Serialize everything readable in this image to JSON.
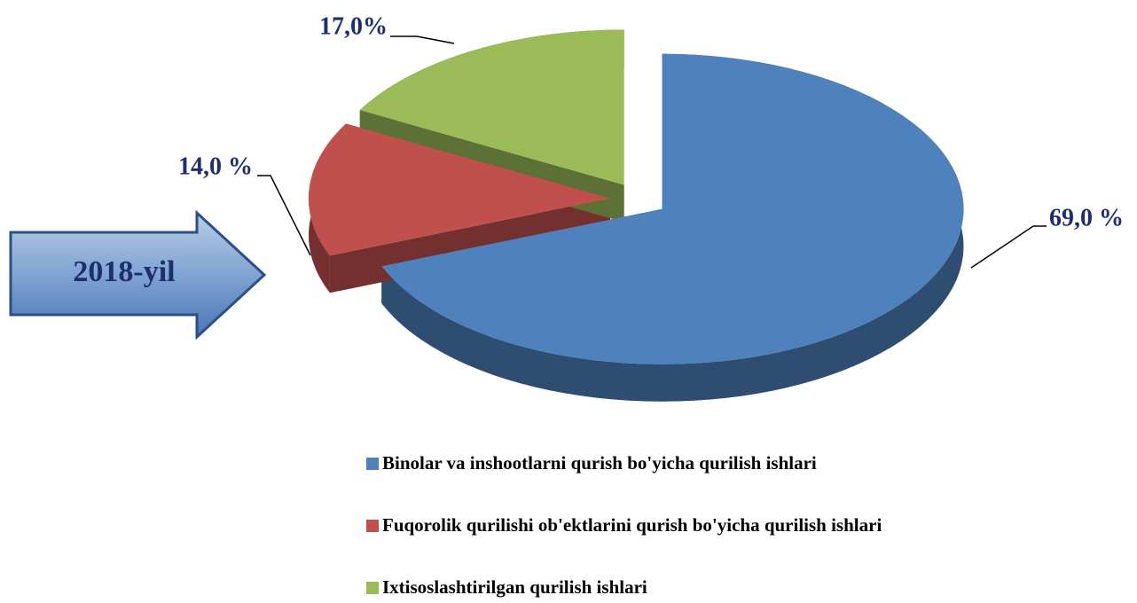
{
  "chart_data": {
    "type": "pie",
    "categories": [
      "Binolar va inshootlarni qurish bo'yicha qurilish ishlari",
      "Fuqorolik qurilishi ob'ektlarini qurish bo'yicha qurilish ishlari",
      "Ixtisoslashtirilgan qurilish ishlari"
    ],
    "values": [
      69,
      14,
      17
    ],
    "value_labels": [
      "69,0 %",
      "14,0 %",
      "17,0%"
    ],
    "colors": [
      "#4f81bd",
      "#c0504d",
      "#9bbb59"
    ],
    "annotation": "2018-yil"
  }
}
